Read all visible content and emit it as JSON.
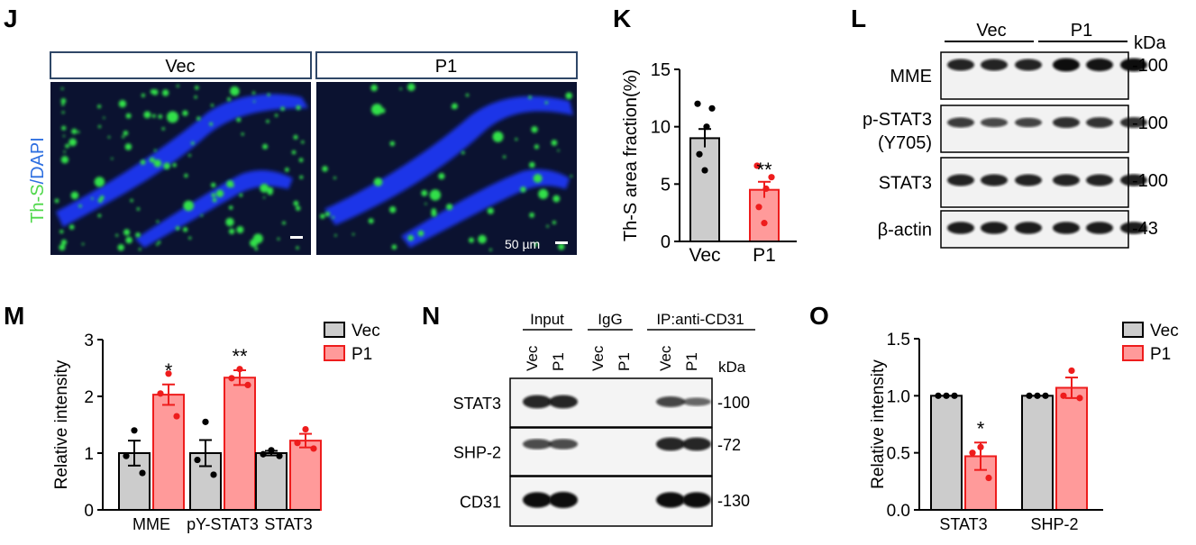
{
  "panels": {
    "J": {
      "label": "J",
      "boxes": [
        "Vec",
        "P1"
      ],
      "stain_a": "Th-S",
      "stain_sep": "/",
      "stain_b": "DAPI",
      "scale_bar": "50 µm",
      "colors": {
        "dapi": "#1f36e8",
        "ths": "#33e04a",
        "background": "#0b1230"
      }
    },
    "K": {
      "label": "K",
      "colors": {
        "vec": "#cccccc",
        "p1": "#ff9a9a",
        "p1_edge": "#ee1c1c"
      }
    },
    "L": {
      "label": "L",
      "groups": [
        "Vec",
        "P1"
      ],
      "kda_unit": "kDa",
      "rows": [
        {
          "protein": "MME",
          "protein_line2": "",
          "kda": "-100"
        },
        {
          "protein": "p-STAT3",
          "protein_line2": "(Y705)",
          "kda": "-100"
        },
        {
          "protein": "STAT3",
          "protein_line2": "",
          "kda": "-100"
        },
        {
          "protein": "β-actin",
          "protein_line2": "",
          "kda": "-43"
        }
      ]
    },
    "M": {
      "label": "M",
      "significance": [
        "*",
        "**",
        ""
      ]
    },
    "N": {
      "label": "N",
      "groups": [
        "Input",
        "IgG",
        "IP:anti-CD31"
      ],
      "lanes": [
        "Vec",
        "P1",
        "Vec",
        "P1",
        "Vec",
        "P1"
      ],
      "kda_unit": "kDa",
      "rows": [
        {
          "protein": "STAT3",
          "kda": "-100"
        },
        {
          "protein": "SHP-2",
          "kda": "-72"
        },
        {
          "protein": "CD31",
          "kda": "-130"
        }
      ]
    },
    "O": {
      "label": "O",
      "significance": [
        "*",
        ""
      ]
    }
  },
  "chart_data": [
    {
      "id": "K",
      "type": "bar",
      "categories": [
        "Vec",
        "P1"
      ],
      "values": [
        9.0,
        4.5
      ],
      "errors": [
        0.8,
        0.7
      ],
      "points": [
        [
          12.0,
          11.6,
          10.0,
          7.6,
          6.2
        ],
        [
          6.6,
          5.6,
          4.6,
          3.0,
          1.6
        ]
      ],
      "significance": [
        "",
        "**"
      ],
      "ylabel": "Th-S area fraction(%)",
      "ylim": [
        0,
        15
      ],
      "yticks": [
        0,
        5,
        10,
        15
      ],
      "grid": false
    },
    {
      "id": "M",
      "type": "bar",
      "categories": [
        "MME",
        "pY-STAT3",
        "STAT3"
      ],
      "series": [
        {
          "name": "Vec",
          "values": [
            1.0,
            1.0,
            1.0
          ],
          "errors": [
            0.22,
            0.23,
            0.04
          ],
          "points": [
            [
              1.4,
              0.95,
              0.65
            ],
            [
              1.55,
              0.88,
              0.62
            ],
            [
              1.05,
              0.98,
              0.95
            ]
          ]
        },
        {
          "name": "P1",
          "values": [
            2.03,
            2.33,
            1.22
          ],
          "errors": [
            0.18,
            0.13,
            0.12
          ],
          "points": [
            [
              2.4,
              2.05,
              1.65
            ],
            [
              2.48,
              2.32,
              2.2
            ],
            [
              1.42,
              1.18,
              1.08
            ]
          ]
        }
      ],
      "ylabel": "Relative intensity",
      "ylim": [
        0,
        3
      ],
      "yticks": [
        0,
        1,
        2,
        3
      ],
      "legend": "top-right",
      "grid": false
    },
    {
      "id": "O",
      "type": "bar",
      "categories": [
        "STAT3",
        "SHP-2"
      ],
      "series": [
        {
          "name": "Vec",
          "values": [
            1.0,
            1.0
          ],
          "errors": [
            0,
            0
          ],
          "points": [
            [
              1.0,
              1.0,
              1.0
            ],
            [
              1.0,
              1.0,
              1.0
            ]
          ]
        },
        {
          "name": "P1",
          "values": [
            0.47,
            1.07
          ],
          "errors": [
            0.12,
            0.09
          ],
          "points": [
            [
              0.55,
              0.5,
              0.28
            ],
            [
              1.22,
              1.0,
              0.98
            ]
          ]
        }
      ],
      "ylabel": "Relative intensity",
      "ylim": [
        0,
        1.5
      ],
      "yticks": [
        "0.0",
        "0.5",
        "1.0",
        "1.5"
      ],
      "legend": "top-right",
      "grid": false
    }
  ]
}
